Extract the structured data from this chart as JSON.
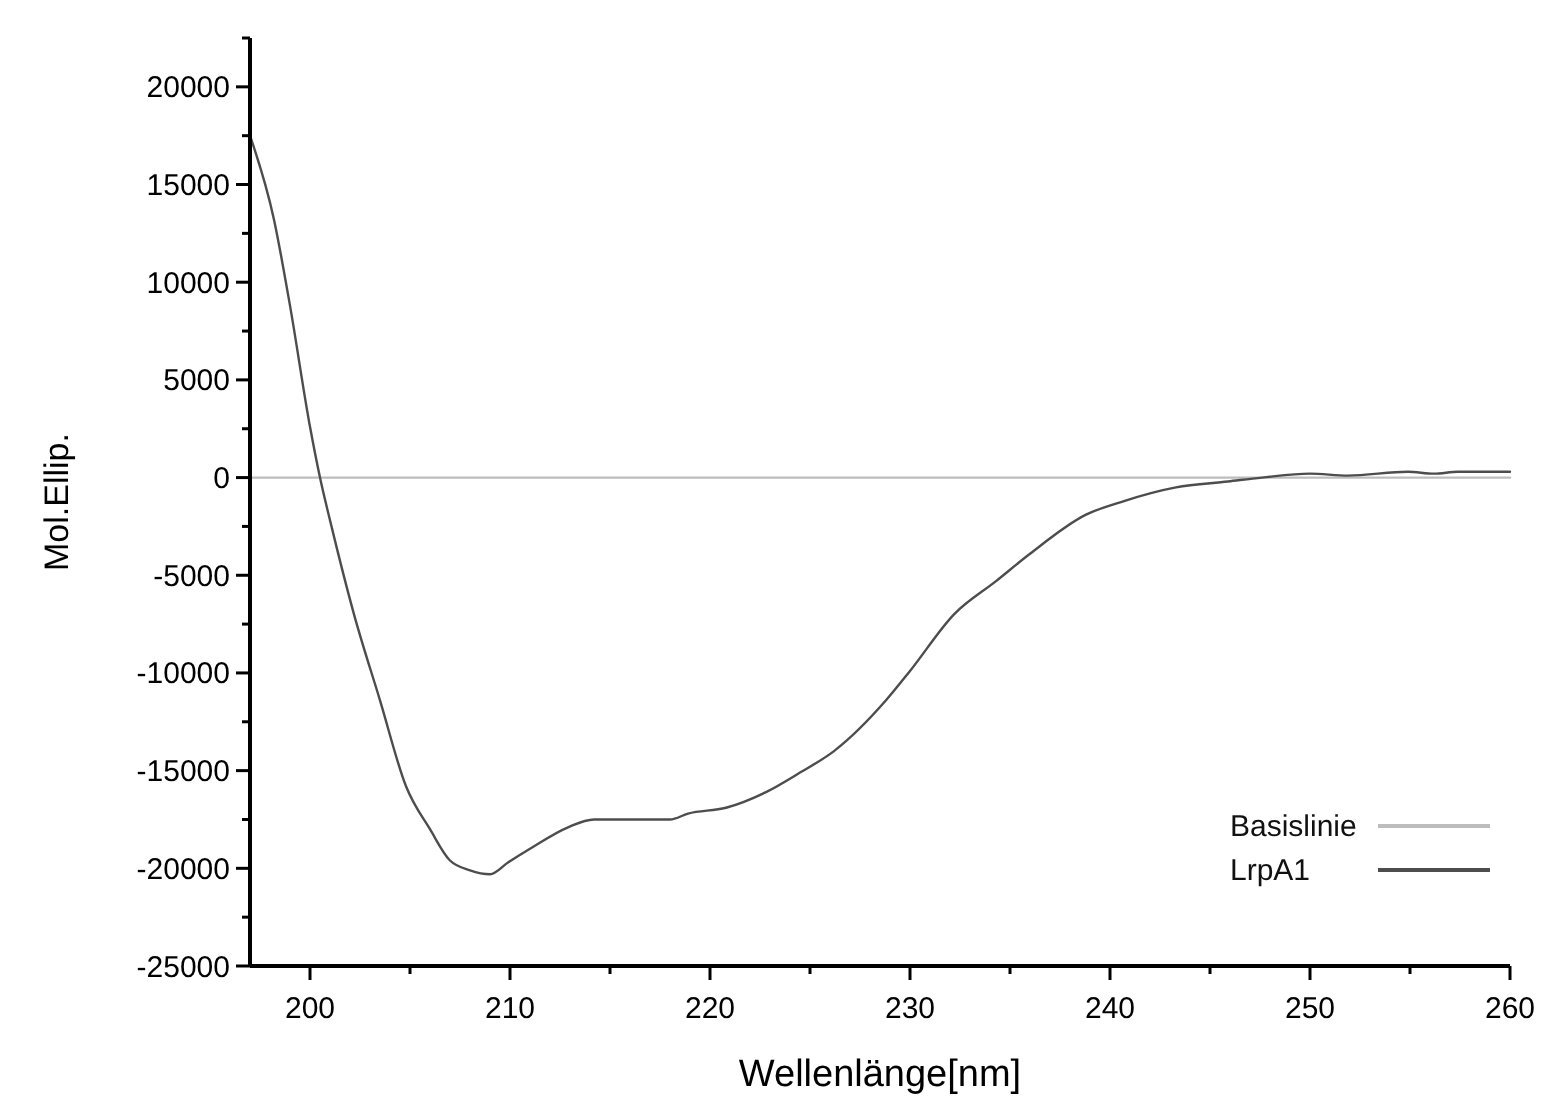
{
  "chart_data": {
    "type": "line",
    "xlabel": "Wellenlänge[nm]",
    "ylabel": "Mol.Ellip.",
    "xlim": [
      197,
      260
    ],
    "xticks": [
      200,
      {
        "value": 205,
        "label": null
      },
      210,
      {
        "value": 215,
        "label": null
      },
      220,
      {
        "value": 225,
        "label": null
      },
      230,
      {
        "value": 235,
        "label": null
      },
      240,
      {
        "value": 245,
        "label": null
      },
      250,
      {
        "value": 255,
        "label": null
      },
      260
    ],
    "ylim": [
      -25000,
      22500
    ],
    "yticks": [
      -25000,
      {
        "value": -22500,
        "label": null
      },
      -20000,
      {
        "value": -17500,
        "label": null
      },
      -15000,
      {
        "value": -12500,
        "label": null
      },
      -10000,
      {
        "value": -7500,
        "label": null
      },
      -5000,
      {
        "value": -2500,
        "label": null
      },
      0,
      {
        "value": 2500,
        "label": null
      },
      5000,
      {
        "value": 7500,
        "label": null
      },
      10000,
      {
        "value": 12500,
        "label": null
      },
      15000,
      {
        "value": 17500,
        "label": null
      },
      20000,
      {
        "value": 22500,
        "label": null
      }
    ],
    "grid": false,
    "legend": "bottom right",
    "marker": "none",
    "line_style": "solid",
    "series": [
      {
        "name": "Basislinie",
        "color": "#bdbdbd",
        "x": [
          197,
          260
        ],
        "values": [
          0,
          0
        ]
      },
      {
        "name": "LrpA1",
        "color": "#4d4d4d",
        "x": [
          197,
          198.2,
          199,
          200,
          200.5,
          201.1,
          202.2,
          203.5,
          204.8,
          206,
          207,
          208,
          209,
          209.9,
          211,
          212.9,
          214.2,
          215.9,
          218,
          218.9,
          220.8,
          222.8,
          224.5,
          226.2,
          228.8,
          230,
          232.2,
          234.3,
          236,
          238.8,
          240.7,
          243.3,
          245.9,
          247.6,
          250,
          251.9,
          254.9,
          256.2,
          257.4,
          260
        ],
        "values": [
          17500,
          13200,
          8800,
          2600,
          0,
          -2600,
          -7000,
          -11400,
          -15800,
          -18000,
          -19600,
          -20100,
          -20300,
          -19700,
          -19000,
          -17900,
          -17500,
          -17500,
          -17500,
          -17200,
          -16900,
          -16100,
          -15100,
          -14000,
          -11400,
          -9900,
          -7000,
          -5300,
          -3900,
          -1900,
          -1200,
          -500,
          -200,
          0,
          200,
          100,
          300,
          200,
          300,
          300
        ]
      }
    ]
  }
}
